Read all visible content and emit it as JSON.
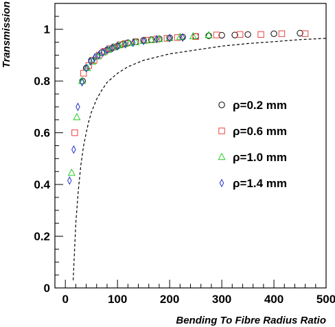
{
  "chart_data": {
    "type": "scatter",
    "xlabel": "Bending To Fibre Radius Ratio",
    "ylabel": "Transmission",
    "xlim": [
      -20,
      500
    ],
    "ylim": [
      0,
      1.1
    ],
    "x_ticks": [
      0,
      100,
      200,
      300,
      400,
      500
    ],
    "y_ticks": [
      0,
      0.2,
      0.4,
      0.6,
      0.8,
      1
    ],
    "grid": false,
    "legend_position": "right",
    "series": [
      {
        "name": "ρ=0.2 mm",
        "marker": "circle",
        "color": "#000000",
        "points": [
          [
            33,
            0.8
          ],
          [
            40,
            0.85
          ],
          [
            50,
            0.88
          ],
          [
            60,
            0.895
          ],
          [
            70,
            0.91
          ],
          [
            80,
            0.92
          ],
          [
            90,
            0.928
          ],
          [
            100,
            0.935
          ],
          [
            110,
            0.942
          ],
          [
            120,
            0.948
          ],
          [
            135,
            0.952
          ],
          [
            150,
            0.957
          ],
          [
            165,
            0.96
          ],
          [
            180,
            0.963
          ],
          [
            200,
            0.967
          ],
          [
            225,
            0.97
          ],
          [
            250,
            0.973
          ],
          [
            275,
            0.975
          ],
          [
            300,
            0.977
          ],
          [
            325,
            0.978
          ],
          [
            350,
            0.98
          ],
          [
            400,
            0.983
          ],
          [
            450,
            0.985
          ]
        ]
      },
      {
        "name": "ρ=0.6 mm",
        "marker": "square",
        "color": "#e8413c",
        "points": [
          [
            18,
            0.6
          ],
          [
            35,
            0.83
          ],
          [
            45,
            0.86
          ],
          [
            55,
            0.88
          ],
          [
            65,
            0.9
          ],
          [
            75,
            0.915
          ],
          [
            85,
            0.925
          ],
          [
            95,
            0.932
          ],
          [
            105,
            0.94
          ],
          [
            115,
            0.945
          ],
          [
            135,
            0.952
          ],
          [
            155,
            0.958
          ],
          [
            175,
            0.962
          ],
          [
            195,
            0.965
          ],
          [
            215,
            0.968
          ],
          [
            250,
            0.972
          ],
          [
            290,
            0.978
          ],
          [
            335,
            0.98
          ],
          [
            375,
            0.98
          ],
          [
            415,
            0.983
          ],
          [
            460,
            0.983
          ]
        ]
      },
      {
        "name": "ρ=1.0 mm",
        "marker": "triangle",
        "color": "#22cc22",
        "points": [
          [
            12,
            0.445
          ],
          [
            22,
            0.66
          ],
          [
            32,
            0.8
          ],
          [
            42,
            0.85
          ],
          [
            52,
            0.875
          ],
          [
            62,
            0.895
          ],
          [
            72,
            0.91
          ],
          [
            82,
            0.92
          ],
          [
            92,
            0.93
          ],
          [
            102,
            0.938
          ],
          [
            112,
            0.942
          ],
          [
            122,
            0.946
          ],
          [
            135,
            0.95
          ],
          [
            150,
            0.955
          ],
          [
            165,
            0.958
          ],
          [
            180,
            0.962
          ],
          [
            200,
            0.966
          ],
          [
            220,
            0.97
          ],
          [
            245,
            0.973
          ],
          [
            275,
            0.977
          ]
        ]
      },
      {
        "name": "ρ=1.4 mm",
        "marker": "diamond",
        "color": "#2233cc",
        "points": [
          [
            8,
            0.415
          ],
          [
            16,
            0.535
          ],
          [
            24,
            0.7
          ],
          [
            32,
            0.795
          ],
          [
            40,
            0.85
          ],
          [
            48,
            0.875
          ],
          [
            56,
            0.89
          ],
          [
            64,
            0.9
          ],
          [
            72,
            0.91
          ],
          [
            80,
            0.92
          ],
          [
            90,
            0.928
          ],
          [
            100,
            0.935
          ],
          [
            115,
            0.942
          ],
          [
            130,
            0.948
          ],
          [
            150,
            0.955
          ],
          [
            175,
            0.962
          ],
          [
            200,
            0.966
          ],
          [
            225,
            0.968
          ]
        ]
      }
    ],
    "reference_curve": {
      "style": "dashed",
      "color": "#000000",
      "x": [
        15,
        20,
        25,
        30,
        35,
        40,
        45,
        50,
        60,
        70,
        80,
        100,
        120,
        150,
        200,
        250,
        300,
        350,
        400,
        450,
        500
      ],
      "y": [
        0.03,
        0.25,
        0.38,
        0.48,
        0.55,
        0.6,
        0.645,
        0.68,
        0.73,
        0.765,
        0.795,
        0.83,
        0.855,
        0.88,
        0.905,
        0.92,
        0.935,
        0.945,
        0.952,
        0.96,
        0.965
      ]
    }
  }
}
